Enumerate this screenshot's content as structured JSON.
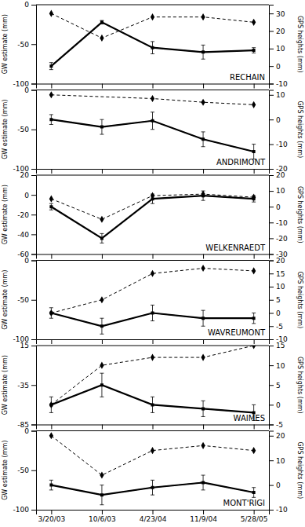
{
  "chart_data": [
    {
      "type": "line",
      "annotations": [
        "RECHAIN"
      ],
      "categories": [
        "3/20/03",
        "10/6/03",
        "4/23/04",
        "11/9/04",
        "5/28/05"
      ],
      "tick_labels": "y",
      "y_label": "GW estimate (mm)",
      "ylim": [
        -100,
        0
      ],
      "yticks": [
        0,
        -50,
        -100
      ],
      "y2_label": "GPS heights (mm)",
      "y2lim": [
        -10,
        35
      ],
      "y2ticks": [
        -10,
        0,
        10,
        20,
        30
      ],
      "series": [
        {
          "axis": "y2",
          "color": "black",
          "line_style": "solid",
          "values": [
            0,
            25,
            10.5,
            8,
            9
          ],
          "errors": [
            2,
            1,
            3.5,
            4,
            1.5
          ]
        },
        {
          "axis": "y2",
          "color": "black",
          "line_style": "solid",
          "marker": "square",
          "values": [
            0,
            25,
            10.5,
            8,
            9
          ]
        },
        {
          "axis": "y2",
          "color": "black",
          "line_style": "dashed",
          "marker": "diamond",
          "x": [
            "3/20/03",
            "10/6/03",
            "4/23/04",
            "11/9/04",
            "5/28/05"
          ],
          "values": [
            30,
            16,
            28,
            28,
            25
          ]
        }
      ]
    },
    {
      "type": "line",
      "annotations": [
        "ANDRIMONT"
      ],
      "categories": [
        "3/20/03",
        "10/6/03",
        "4/23/04",
        "11/9/04",
        "5/28/05"
      ],
      "tick_labels": "y",
      "y_label": "GW estimate (mm)",
      "ylim": [
        -100,
        0
      ],
      "yticks": [
        0,
        -50,
        -100
      ],
      "y2_label": "GPS heights (mm)",
      "y2lim": [
        -20,
        12
      ],
      "y2ticks": [
        -20,
        -10,
        0,
        10
      ],
      "series": [
        {
          "axis": "y2",
          "color": "black",
          "line_style": "solid",
          "values": [
            0,
            -3,
            -0.5,
            -8,
            -13
          ],
          "errors": [
            2,
            3,
            3.5,
            3,
            3
          ]
        },
        {
          "axis": "y2",
          "color": "black",
          "line_style": "solid",
          "marker": "square",
          "values": [
            0,
            -3,
            -0.5,
            -8,
            -13
          ]
        },
        {
          "axis": "y2",
          "color": "black",
          "line_style": "dashed",
          "marker": "diamond",
          "x": [
            "3/20/03",
            "4/23/04",
            "11/9/04",
            "5/28/05"
          ],
          "values": [
            10,
            8.5,
            7,
            6
          ]
        }
      ]
    },
    {
      "type": "line",
      "annotations": [
        "WELKENRAEDT"
      ],
      "categories": [
        "3/20/03",
        "10/6/03",
        "4/23/04",
        "11/9/04",
        "5/28/05"
      ],
      "tick_labels": "y",
      "y_label": "GW estimate (mm)",
      "ylim": [
        -60,
        20
      ],
      "yticks": [
        20,
        0,
        -20,
        -40,
        -60
      ],
      "y2_label": "GPS heights (mm)",
      "y2lim": [
        -30,
        20
      ],
      "y2ticks": [
        -30,
        -20,
        -10,
        0,
        10,
        20
      ],
      "series": [
        {
          "axis": "y2",
          "color": "black",
          "line_style": "solid",
          "values": [
            0,
            -20,
            5,
            7,
            5
          ],
          "errors": [
            2,
            3,
            3,
            3,
            2
          ]
        },
        {
          "axis": "y2",
          "color": "black",
          "line_style": "solid",
          "marker": "square",
          "values": [
            0,
            -20,
            5,
            7,
            5
          ]
        },
        {
          "axis": "y2",
          "color": "black",
          "line_style": "dashed",
          "marker": "diamond",
          "x": [
            "3/20/03",
            "10/6/03",
            "4/23/04",
            "11/9/04",
            "5/28/05"
          ],
          "values": [
            5,
            -8,
            7,
            8,
            6
          ]
        }
      ]
    },
    {
      "type": "line",
      "annotations": [
        "WAVREUMONT"
      ],
      "categories": [
        "3/20/03",
        "10/6/03",
        "4/23/04",
        "11/9/04",
        "5/28/05"
      ],
      "tick_labels": "y",
      "y_label": "GW estimate (mm)",
      "ylim": [
        -100,
        0
      ],
      "yticks": [
        0,
        -50,
        -100
      ],
      "y2_label": "GPS heights (mm)",
      "y2lim": [
        -10,
        20
      ],
      "y2ticks": [
        -10,
        -5,
        0,
        5,
        10,
        15,
        20
      ],
      "series": [
        {
          "axis": "y2",
          "color": "black",
          "line_style": "solid",
          "values": [
            0,
            -5,
            0,
            -2,
            -2
          ],
          "errors": [
            2,
            3,
            3,
            3,
            2
          ]
        },
        {
          "axis": "y2",
          "color": "black",
          "line_style": "solid",
          "marker": "square",
          "values": [
            0,
            -5,
            0,
            -2,
            -2
          ]
        },
        {
          "axis": "y2",
          "color": "black",
          "line_style": "dashed",
          "marker": "diamond",
          "x": [
            "3/20/03",
            "10/6/03",
            "4/23/04",
            "11/9/04",
            "5/28/05"
          ],
          "values": [
            0,
            5,
            15,
            17,
            16
          ]
        }
      ]
    },
    {
      "type": "line",
      "annotations": [
        "WAIMES"
      ],
      "categories": [
        "3/20/03",
        "10/6/03",
        "4/23/04",
        "11/9/04",
        "5/28/05"
      ],
      "tick_labels": "y",
      "y_label": "GW estimate (mm)",
      "ylim": [
        -85,
        15
      ],
      "yticks": [
        15,
        -35,
        -85
      ],
      "y2_label": "GPS heights (mm)",
      "y2lim": [
        -5,
        15
      ],
      "y2ticks": [
        -5,
        0,
        5,
        10,
        15
      ],
      "series": [
        {
          "axis": "y2",
          "color": "black",
          "line_style": "solid",
          "values": [
            0,
            5,
            0,
            -1,
            -2
          ],
          "errors": [
            2,
            3,
            2,
            2,
            2
          ]
        },
        {
          "axis": "y2",
          "color": "black",
          "line_style": "solid",
          "marker": "square",
          "values": [
            0,
            5,
            0,
            -1,
            -2
          ]
        },
        {
          "axis": "y2",
          "color": "black",
          "line_style": "dashed",
          "marker": "diamond",
          "x": [
            "3/20/03",
            "10/6/03",
            "4/23/04",
            "11/9/04",
            "5/28/05"
          ],
          "values": [
            0,
            10,
            12,
            12,
            15
          ]
        }
      ]
    },
    {
      "type": "line",
      "annotations": [
        "MONT'RIGI"
      ],
      "categories": [
        "3/20/03",
        "10/6/03",
        "4/23/04",
        "11/9/04",
        "5/28/05"
      ],
      "y_label": "GW estimate (mm)",
      "ylim": [
        -100,
        0
      ],
      "yticks": [
        0,
        -50,
        -100
      ],
      "y2_label": "GPS heights (mm)",
      "y2lim": [
        -10,
        22
      ],
      "y2ticks": [
        -10,
        0,
        10,
        20
      ],
      "series": [
        {
          "axis": "y2",
          "color": "black",
          "line_style": "solid",
          "values": [
            0,
            -4,
            -1,
            1,
            -3
          ],
          "errors": [
            2,
            4,
            3,
            3,
            2
          ]
        },
        {
          "axis": "y2",
          "color": "black",
          "line_style": "solid",
          "marker": "square",
          "values": [
            0,
            -4,
            -1,
            1,
            -3
          ]
        },
        {
          "axis": "y2",
          "color": "black",
          "line_style": "dashed",
          "marker": "diamond",
          "x": [
            "3/20/03",
            "10/6/03",
            "4/23/04",
            "11/9/04",
            "5/28/05"
          ],
          "values": [
            20,
            4,
            14,
            16,
            14
          ]
        }
      ]
    }
  ]
}
